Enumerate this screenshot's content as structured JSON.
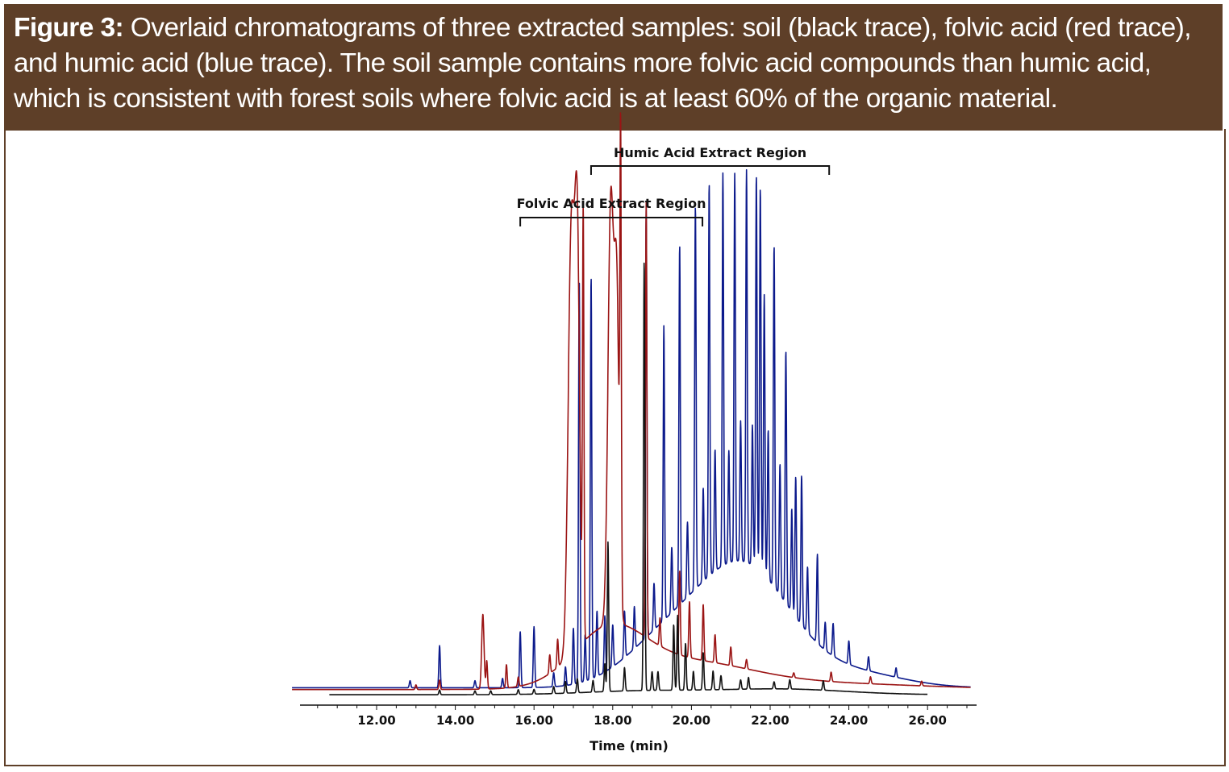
{
  "caption": {
    "label": "Figure 3:",
    "text": " Overlaid chromatograms of three extracted samples: soil (black trace), folvic acid (red trace), and humic acid (blue trace). The soil sample contains more folvic acid compounds than humic acid, which is consistent with forest soils where folvic acid is at least 60% of the organic material."
  },
  "colors": {
    "header_bg": "#5e3f28",
    "soil": "#111111",
    "folvic": "#9b1414",
    "humic": "#0c1a8c"
  },
  "chart_data": {
    "type": "line",
    "xlabel": "Time (min)",
    "ylabel": "",
    "xlim": [
      10.05,
      27.2
    ],
    "ylim": [
      0,
      100
    ],
    "y_axis_shown": false,
    "grid": false,
    "x_ticks": [
      "12.00",
      "14.00",
      "16.00",
      "18.00",
      "20.00",
      "22.00",
      "24.00",
      "26.00"
    ],
    "x_tick_values": [
      12,
      14,
      16,
      18,
      20,
      22,
      24,
      26
    ],
    "annotations": [
      {
        "label": "Folvic Acid Extract Region",
        "from": 15.65,
        "to": 20.28
      },
      {
        "label": "Humic Acid Extract Region",
        "from": 17.45,
        "to": 23.5
      }
    ],
    "series": [
      {
        "key": "humic",
        "range": [
          9.85,
          27.1
        ],
        "baseline": 2.0,
        "humps": [
          [
            21.3,
            26,
            1.2
          ],
          [
            19.2,
            8,
            1.0
          ],
          [
            24.2,
            3,
            1.2
          ]
        ],
        "peaks": [
          [
            12.85,
            1.5
          ],
          [
            13.6,
            9
          ],
          [
            14.5,
            1.5
          ],
          [
            15.2,
            2
          ],
          [
            15.65,
            12
          ],
          [
            16.0,
            13
          ],
          [
            16.5,
            3
          ],
          [
            16.8,
            4
          ],
          [
            17.0,
            12
          ],
          [
            17.15,
            86
          ],
          [
            17.3,
            10
          ],
          [
            17.45,
            86
          ],
          [
            17.6,
            14
          ],
          [
            17.8,
            12
          ],
          [
            18.0,
            9
          ],
          [
            18.3,
            10
          ],
          [
            18.55,
            9
          ],
          [
            18.85,
            92
          ],
          [
            19.05,
            10
          ],
          [
            19.3,
            63
          ],
          [
            19.5,
            14
          ],
          [
            19.7,
            77
          ],
          [
            19.9,
            16
          ],
          [
            20.1,
            82
          ],
          [
            20.3,
            20
          ],
          [
            20.45,
            84
          ],
          [
            20.6,
            26
          ],
          [
            20.8,
            84
          ],
          [
            20.95,
            24
          ],
          [
            21.1,
            83
          ],
          [
            21.25,
            30
          ],
          [
            21.4,
            84
          ],
          [
            21.55,
            30
          ],
          [
            21.65,
            84
          ],
          [
            21.75,
            82
          ],
          [
            21.85,
            60
          ],
          [
            21.95,
            32
          ],
          [
            22.1,
            73
          ],
          [
            22.25,
            28
          ],
          [
            22.4,
            54
          ],
          [
            22.55,
            22
          ],
          [
            22.65,
            30
          ],
          [
            22.8,
            32
          ],
          [
            22.95,
            14
          ],
          [
            23.2,
            19
          ],
          [
            23.4,
            6
          ],
          [
            23.6,
            7
          ],
          [
            24.0,
            5
          ],
          [
            24.5,
            3
          ],
          [
            25.2,
            2
          ]
        ]
      },
      {
        "key": "folvic",
        "range": [
          9.85,
          27.1
        ],
        "baseline": 1.6,
        "humps": [
          [
            17.9,
            11,
            0.9
          ],
          [
            19.8,
            5,
            1.6
          ],
          [
            22.5,
            1.5,
            3
          ]
        ],
        "peaks": [
          [
            13.0,
            1
          ],
          [
            13.6,
            2
          ],
          [
            14.7,
            16,
            0.03
          ],
          [
            14.8,
            6
          ],
          [
            15.3,
            5
          ],
          [
            15.6,
            2
          ],
          [
            16.4,
            4
          ],
          [
            16.6,
            6
          ],
          [
            16.95,
            92,
            0.08
          ],
          [
            17.1,
            82,
            0.06
          ],
          [
            17.25,
            90
          ],
          [
            17.95,
            90,
            0.07
          ],
          [
            18.1,
            70,
            0.06
          ],
          [
            18.2,
            92
          ],
          [
            18.85,
            93
          ],
          [
            19.2,
            6
          ],
          [
            19.7,
            18
          ],
          [
            19.95,
            12
          ],
          [
            20.3,
            12
          ],
          [
            20.6,
            6
          ],
          [
            21.0,
            4
          ],
          [
            21.4,
            2
          ],
          [
            22.6,
            1
          ],
          [
            23.55,
            2
          ],
          [
            24.55,
            1.5
          ],
          [
            25.85,
            1
          ]
        ]
      },
      {
        "key": "soil",
        "range": [
          10.8,
          26.0
        ],
        "baseline": 0.5,
        "humps": [
          [
            22.3,
            1.2,
            1.6
          ],
          [
            18.8,
            0.8,
            1.5
          ]
        ],
        "peaks": [
          [
            13.6,
            1
          ],
          [
            14.5,
            0.8
          ],
          [
            14.9,
            0.8
          ],
          [
            15.6,
            1
          ],
          [
            16.0,
            1
          ],
          [
            16.5,
            1.5
          ],
          [
            16.8,
            2.5
          ],
          [
            17.1,
            3
          ],
          [
            17.5,
            2.5
          ],
          [
            17.8,
            6
          ],
          [
            17.88,
            32
          ],
          [
            18.3,
            5
          ],
          [
            18.8,
            92
          ],
          [
            19.0,
            4
          ],
          [
            19.15,
            4
          ],
          [
            19.55,
            14
          ],
          [
            19.65,
            16
          ],
          [
            19.85,
            10
          ],
          [
            20.05,
            4
          ],
          [
            20.3,
            8
          ],
          [
            20.55,
            4
          ],
          [
            20.75,
            3
          ],
          [
            21.25,
            2
          ],
          [
            21.45,
            2.5
          ],
          [
            22.1,
            1.5
          ],
          [
            22.5,
            2
          ],
          [
            23.35,
            2
          ]
        ]
      }
    ]
  }
}
